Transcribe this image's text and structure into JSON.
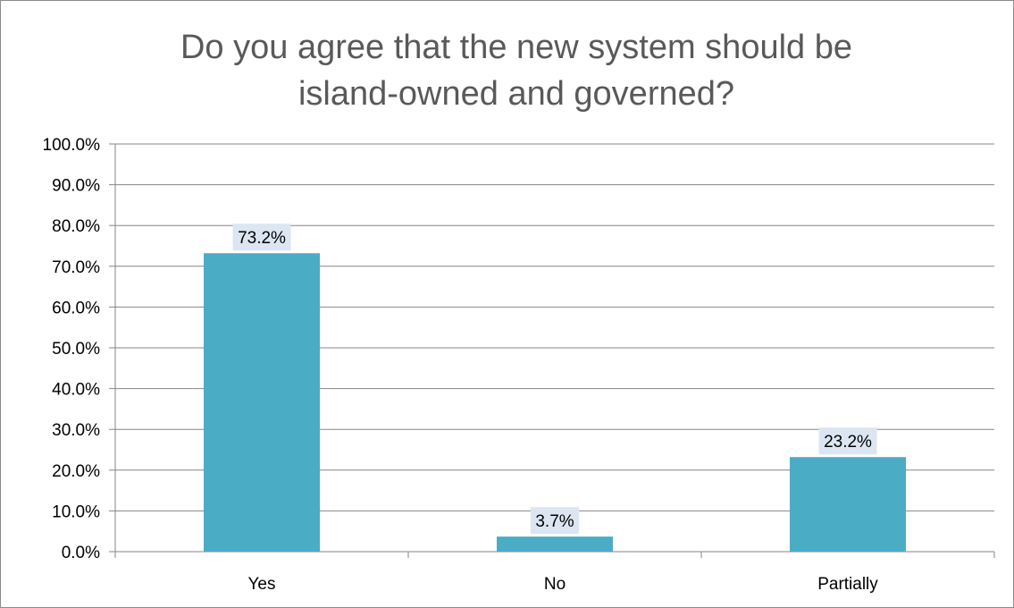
{
  "chart_data": {
    "type": "bar",
    "title": "Do you agree that the new system should be island-owned and governed?",
    "title_lines": [
      "Do you agree that the new system should be",
      "island-owned and governed?"
    ],
    "categories": [
      "Yes",
      "No",
      "Partially"
    ],
    "values": [
      73.2,
      3.7,
      23.2
    ],
    "data_labels": [
      "73.2%",
      "3.7%",
      "23.2%"
    ],
    "ylim": [
      0,
      100
    ],
    "y_ticks": [
      0,
      10,
      20,
      30,
      40,
      50,
      60,
      70,
      80,
      90,
      100
    ],
    "y_tick_labels": [
      "0.0%",
      "10.0%",
      "20.0%",
      "30.0%",
      "40.0%",
      "50.0%",
      "60.0%",
      "70.0%",
      "80.0%",
      "90.0%",
      "100.0%"
    ],
    "grid": true,
    "legend": "none",
    "colors": {
      "bar": "#4BACC6",
      "data_label_bg": "#DCE6F2",
      "gridline": "#868686",
      "title": "#595959"
    }
  }
}
